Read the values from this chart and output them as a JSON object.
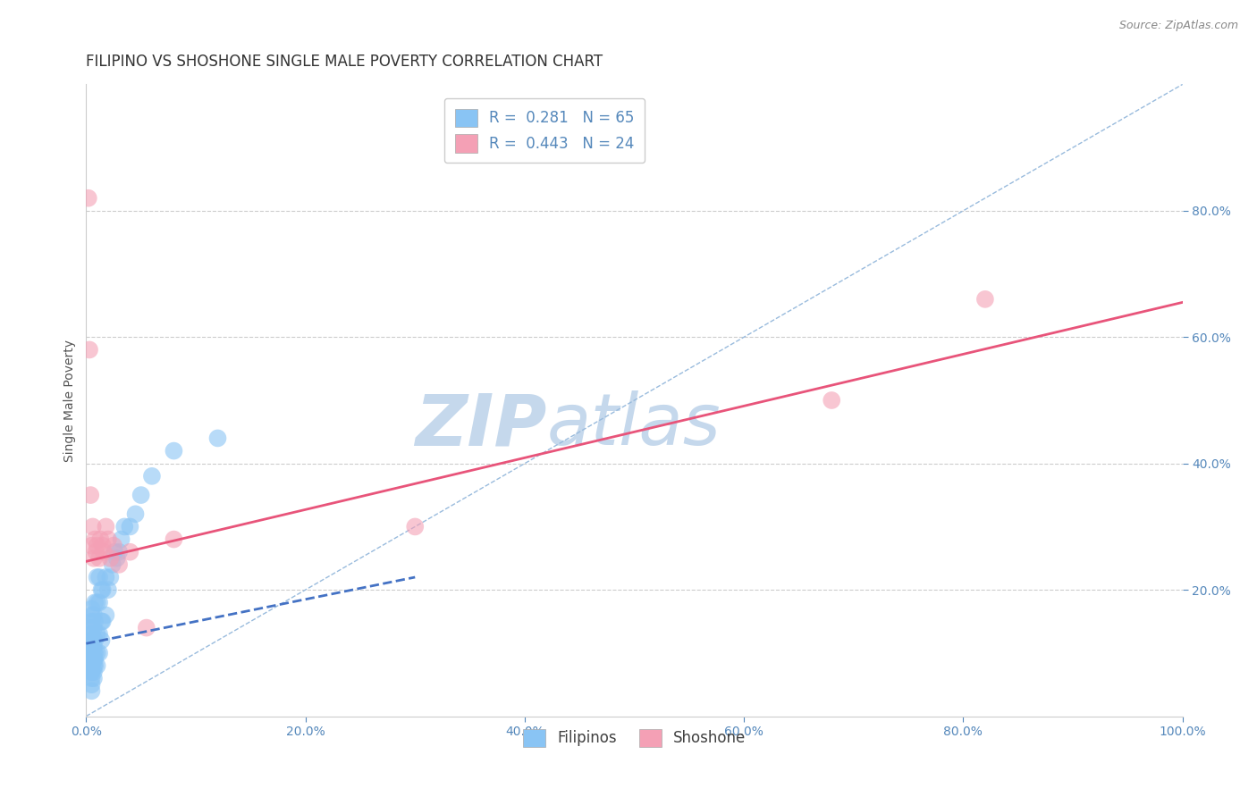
{
  "title": "FILIPINO VS SHOSHONE SINGLE MALE POVERTY CORRELATION CHART",
  "source": "Source: ZipAtlas.com",
  "ylabel": "Single Male Poverty",
  "xlim": [
    0,
    1.0
  ],
  "ylim": [
    0,
    1.0
  ],
  "xtick_values": [
    0.0,
    0.2,
    0.4,
    0.6,
    0.8,
    1.0
  ],
  "ytick_values": [
    0.2,
    0.4,
    0.6,
    0.8
  ],
  "filipino_R": 0.281,
  "filipino_N": 65,
  "shoshone_R": 0.443,
  "shoshone_N": 24,
  "filipino_color": "#89C4F4",
  "shoshone_color": "#F4A0B5",
  "filipino_line_color": "#4472C4",
  "shoshone_line_color": "#E8547A",
  "diagonal_color": "#99BBDD",
  "watermark_color": "#C5D8EC",
  "title_color": "#333333",
  "axis_label_color": "#555555",
  "tick_color": "#5588BB",
  "title_fontsize": 12,
  "source_fontsize": 9,
  "axis_label_fontsize": 10,
  "tick_fontsize": 10,
  "legend_fontsize": 12,
  "filipino_x": [
    0.005,
    0.005,
    0.005,
    0.005,
    0.005,
    0.005,
    0.005,
    0.005,
    0.005,
    0.005,
    0.005,
    0.005,
    0.005,
    0.005,
    0.005,
    0.005,
    0.005,
    0.005,
    0.005,
    0.005,
    0.005,
    0.007,
    0.007,
    0.007,
    0.007,
    0.007,
    0.007,
    0.007,
    0.007,
    0.008,
    0.008,
    0.008,
    0.008,
    0.008,
    0.008,
    0.01,
    0.01,
    0.01,
    0.01,
    0.01,
    0.012,
    0.012,
    0.012,
    0.012,
    0.014,
    0.014,
    0.014,
    0.015,
    0.015,
    0.018,
    0.018,
    0.02,
    0.022,
    0.024,
    0.026,
    0.028,
    0.03,
    0.032,
    0.035,
    0.04,
    0.045,
    0.05,
    0.06,
    0.08,
    0.12
  ],
  "filipino_y": [
    0.04,
    0.05,
    0.06,
    0.07,
    0.07,
    0.08,
    0.08,
    0.09,
    0.09,
    0.1,
    0.1,
    0.11,
    0.11,
    0.12,
    0.12,
    0.13,
    0.13,
    0.14,
    0.15,
    0.16,
    0.17,
    0.06,
    0.07,
    0.08,
    0.09,
    0.1,
    0.11,
    0.14,
    0.16,
    0.08,
    0.09,
    0.1,
    0.12,
    0.15,
    0.18,
    0.08,
    0.1,
    0.13,
    0.18,
    0.22,
    0.1,
    0.13,
    0.18,
    0.22,
    0.12,
    0.15,
    0.2,
    0.15,
    0.2,
    0.16,
    0.22,
    0.2,
    0.22,
    0.24,
    0.26,
    0.25,
    0.26,
    0.28,
    0.3,
    0.3,
    0.32,
    0.35,
    0.38,
    0.42,
    0.44
  ],
  "shoshone_x": [
    0.002,
    0.003,
    0.004,
    0.005,
    0.006,
    0.007,
    0.008,
    0.009,
    0.01,
    0.012,
    0.013,
    0.015,
    0.016,
    0.018,
    0.02,
    0.022,
    0.025,
    0.03,
    0.04,
    0.055,
    0.08,
    0.3,
    0.68,
    0.82
  ],
  "shoshone_y": [
    0.82,
    0.58,
    0.35,
    0.27,
    0.3,
    0.25,
    0.28,
    0.26,
    0.27,
    0.25,
    0.28,
    0.27,
    0.26,
    0.3,
    0.28,
    0.25,
    0.27,
    0.24,
    0.26,
    0.14,
    0.28,
    0.3,
    0.5,
    0.66
  ],
  "shoshone_line_x0": 0.0,
  "shoshone_line_y0": 0.245,
  "shoshone_line_x1": 1.0,
  "shoshone_line_y1": 0.655,
  "filipino_line_x0": 0.0,
  "filipino_line_y0": 0.115,
  "filipino_line_x1": 0.3,
  "filipino_line_y1": 0.22
}
